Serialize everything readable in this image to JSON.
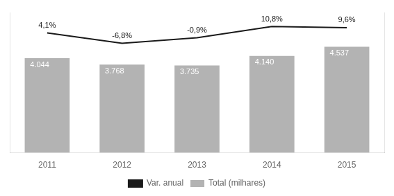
{
  "chart_data": {
    "type": "bar",
    "categories": [
      "2011",
      "2012",
      "2013",
      "2014",
      "2015"
    ],
    "series": [
      {
        "name": "Total (milhares)",
        "type": "bar",
        "color": "#b3b3b3",
        "values": [
          4044,
          3768,
          3735,
          4140,
          4537
        ],
        "value_labels": [
          "4.044",
          "3.768",
          "3.735",
          "4.140",
          "4.537"
        ]
      },
      {
        "name": "Var. anual",
        "type": "line",
        "color": "#1a1a1a",
        "axis": "y2",
        "values": [
          4.1,
          -6.8,
          -0.9,
          10.8,
          9.6
        ],
        "value_labels": [
          "4,1%",
          "-6,8%",
          "-0,9%",
          "10,8%",
          "9,6%"
        ]
      }
    ],
    "ylim": [
      0,
      6000
    ],
    "y2lim": [
      -121.2,
      25.5
    ],
    "grid": false,
    "legend": "bottom",
    "data_labels": true,
    "tick_labels": "x"
  }
}
